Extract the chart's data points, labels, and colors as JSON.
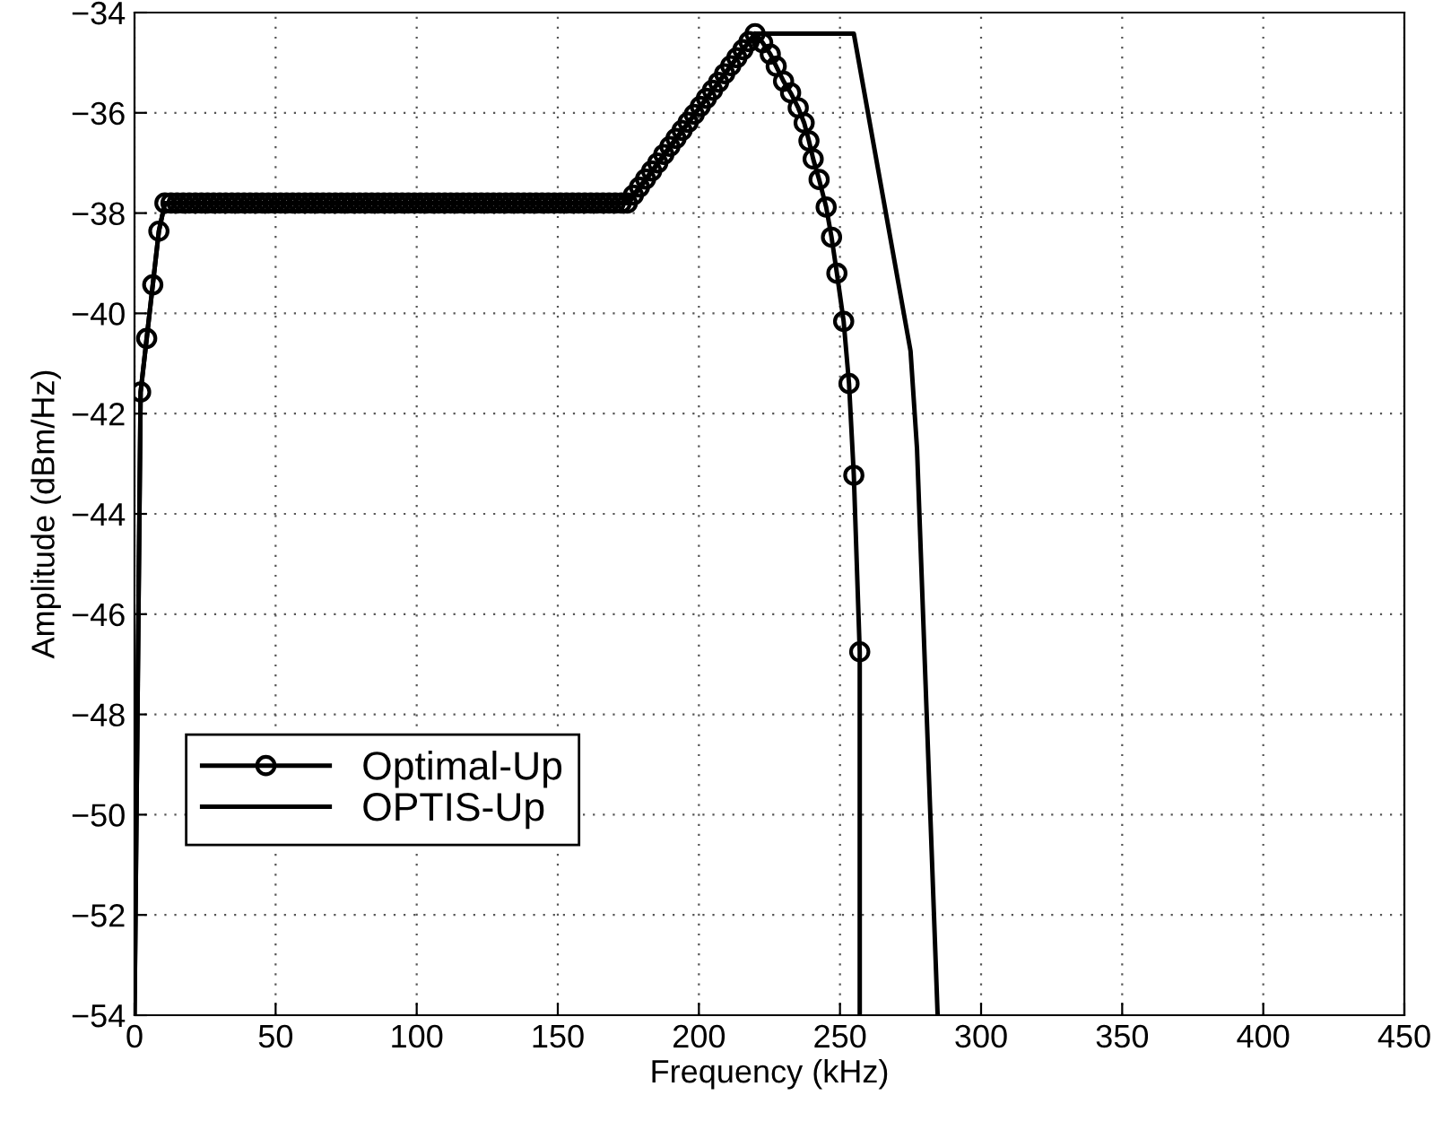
{
  "chart_data": {
    "type": "line",
    "xlabel": "Frequency (kHz)",
    "ylabel": "Amplitude (dBm/Hz)",
    "xlim": [
      0,
      450
    ],
    "ylim": [
      -54,
      -34
    ],
    "xticks": [
      0,
      50,
      100,
      150,
      200,
      250,
      300,
      350,
      400,
      450
    ],
    "yticks": [
      -54,
      -52,
      -50,
      -48,
      -46,
      -44,
      -42,
      -40,
      -38,
      -36,
      -34
    ],
    "grid": true,
    "legend": "bottom left",
    "series": [
      {
        "name": "Optimal-Up",
        "color": "#000000",
        "marker": "circle",
        "line_style": "solid",
        "x": [
          0,
          2.16,
          4.31,
          6.47,
          8.63,
          10.78,
          12.94,
          15.09,
          17.25,
          19.41,
          21.56,
          23.72,
          25.87,
          28.03,
          30.19,
          32.34,
          34.5,
          36.65,
          38.81,
          40.97,
          43.12,
          45.28,
          47.43,
          49.59,
          51.75,
          53.9,
          56.06,
          58.21,
          60.37,
          62.53,
          64.68,
          66.84,
          68.99,
          71.15,
          73.31,
          75.46,
          77.62,
          79.77,
          81.93,
          84.09,
          86.24,
          88.4,
          90.55,
          92.71,
          94.87,
          97.02,
          99.18,
          101.33,
          103.49,
          105.65,
          107.8,
          109.96,
          112.11,
          114.27,
          116.43,
          118.58,
          120.74,
          122.89,
          125.05,
          127.21,
          129.36,
          131.52,
          133.67,
          135.83,
          137.99,
          140.14,
          142.3,
          144.45,
          146.61,
          148.77,
          150.92,
          153.08,
          155.23,
          157.39,
          159.55,
          161.7,
          163.86,
          166.01,
          168.17,
          170.33,
          172.48,
          174.64,
          176.79,
          178.95,
          181.11,
          183.26,
          185.42,
          187.57,
          189.73,
          191.89,
          194.04,
          196.2,
          198.35,
          200.51,
          202.67,
          204.82,
          206.98,
          209.13,
          211.29,
          213.45,
          215.6,
          217.76,
          219.91,
          222.6,
          225.3,
          227.4,
          230.0,
          232.5,
          235.2,
          237.3,
          239.0,
          240.5,
          242.6,
          245.1,
          247.0,
          248.9,
          251.3,
          253.2,
          254.9,
          257.0,
          257.0
        ],
        "values": [
          -54,
          -41.57,
          -40.5,
          -39.43,
          -38.36,
          -37.8,
          -37.8,
          -37.8,
          -37.8,
          -37.8,
          -37.8,
          -37.8,
          -37.8,
          -37.8,
          -37.8,
          -37.8,
          -37.8,
          -37.8,
          -37.8,
          -37.8,
          -37.8,
          -37.8,
          -37.8,
          -37.8,
          -37.8,
          -37.8,
          -37.8,
          -37.8,
          -37.8,
          -37.8,
          -37.8,
          -37.8,
          -37.8,
          -37.8,
          -37.8,
          -37.8,
          -37.8,
          -37.8,
          -37.8,
          -37.8,
          -37.8,
          -37.8,
          -37.8,
          -37.8,
          -37.8,
          -37.8,
          -37.8,
          -37.8,
          -37.8,
          -37.8,
          -37.8,
          -37.8,
          -37.8,
          -37.8,
          -37.8,
          -37.8,
          -37.8,
          -37.8,
          -37.8,
          -37.8,
          -37.8,
          -37.8,
          -37.8,
          -37.8,
          -37.8,
          -37.8,
          -37.8,
          -37.8,
          -37.8,
          -37.8,
          -37.8,
          -37.8,
          -37.8,
          -37.8,
          -37.8,
          -37.8,
          -37.8,
          -37.8,
          -37.8,
          -37.8,
          -37.8,
          -37.8,
          -37.64,
          -37.48,
          -37.32,
          -37.16,
          -37.0,
          -36.83,
          -36.67,
          -36.51,
          -36.35,
          -36.19,
          -36.03,
          -35.87,
          -35.71,
          -35.55,
          -35.39,
          -35.22,
          -35.06,
          -34.9,
          -34.74,
          -34.58,
          -34.42,
          -34.6,
          -34.83,
          -35.07,
          -35.37,
          -35.6,
          -35.9,
          -36.2,
          -36.56,
          -36.92,
          -37.33,
          -37.88,
          -38.48,
          -39.2,
          -40.16,
          -41.4,
          -43.23,
          -46.75,
          -54
        ]
      },
      {
        "name": "OPTIS-Up",
        "color": "#000000",
        "marker": "none",
        "line_style": "solid",
        "x": [
          0,
          2.16,
          4.31,
          6.47,
          8.63,
          10.78,
          175.1,
          219.9,
          254.9,
          275.0,
          277.3,
          284.6
        ],
        "values": [
          -54,
          -41.57,
          -40.5,
          -39.43,
          -38.36,
          -37.8,
          -37.8,
          -34.42,
          -34.42,
          -40.75,
          -42.7,
          -54
        ]
      }
    ]
  }
}
